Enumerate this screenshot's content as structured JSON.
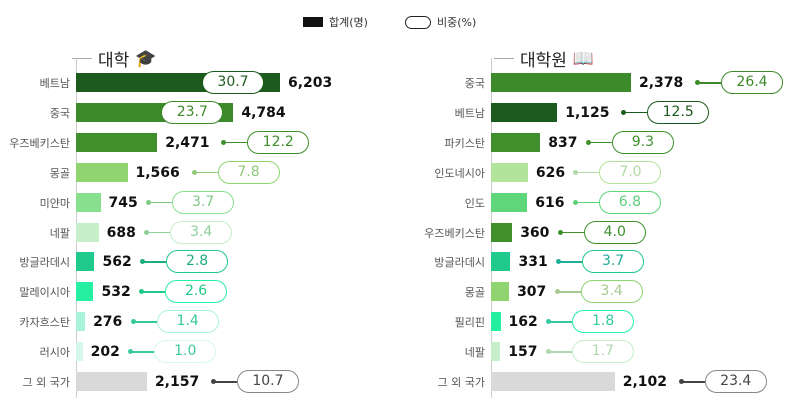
{
  "legend": {
    "total": "합계(명)",
    "share": "비중(%)"
  },
  "chart_data": [
    {
      "type": "bar",
      "title": "대학",
      "icon": "graduation-cap-icon",
      "categories": [
        "베트남",
        "중국",
        "우즈베키스탄",
        "몽골",
        "미얀마",
        "네팔",
        "방글라데시",
        "말레이시아",
        "카자흐스탄",
        "러시아",
        "그 외 국가"
      ],
      "values": [
        6203,
        4784,
        2471,
        1566,
        745,
        688,
        562,
        532,
        276,
        202,
        2157
      ],
      "labels": [
        "6,203",
        "4,784",
        "2,471",
        "1,566",
        "745",
        "688",
        "562",
        "532",
        "276",
        "202",
        "2,157"
      ],
      "share": [
        "30.7",
        "23.7",
        "12.2",
        "7.8",
        "3.7",
        "3.4",
        "2.8",
        "2.6",
        "1.4",
        "1.0",
        "10.7"
      ],
      "colors": [
        "#1d5a1d",
        "#3d8a2b",
        "#3f8f2c",
        "#8fd46f",
        "#88e08e",
        "#c6eec8",
        "#20c98c",
        "#25f0a2",
        "#a9f4d8",
        "#d6f8ea",
        "#d9d9d9"
      ],
      "pill_text_colors": [
        "#1d5a1d",
        "#3d8a2b",
        "#3f8f2c",
        "#8fc878",
        "#7fc987",
        "#8fcf98",
        "#1fae7a",
        "#1fc98a",
        "#35c99a",
        "#3cc9a0",
        "#444"
      ]
    },
    {
      "type": "bar",
      "title": "대학원",
      "icon": "book-search-icon",
      "categories": [
        "중국",
        "베트남",
        "파키스탄",
        "인도네시아",
        "인도",
        "우즈베키스탄",
        "방글라데시",
        "몽골",
        "필리핀",
        "네팔",
        "그 외 국가"
      ],
      "values": [
        2378,
        1125,
        837,
        626,
        616,
        360,
        331,
        307,
        162,
        157,
        2102
      ],
      "labels": [
        "2,378",
        "1,125",
        "837",
        "626",
        "616",
        "360",
        "331",
        "307",
        "162",
        "157",
        "2,102"
      ],
      "share": [
        "26.4",
        "12.5",
        "9.3",
        "7.0",
        "6.8",
        "4.0",
        "3.7",
        "3.4",
        "1.8",
        "1.7",
        "23.4"
      ],
      "colors": [
        "#3d8a2b",
        "#1d5a1d",
        "#3f8f2c",
        "#b2e59b",
        "#5fd67a",
        "#3f8f2c",
        "#20c98c",
        "#8fd46f",
        "#25f0a2",
        "#c6eec8",
        "#d9d9d9"
      ],
      "pill_text_colors": [
        "#3d8a2b",
        "#1d5a1d",
        "#3f8f2c",
        "#b2d9a5",
        "#5fcf7a",
        "#3f8f2c",
        "#1fae9a",
        "#a8c890",
        "#35c9a0",
        "#b0d6b0",
        "#444"
      ]
    }
  ]
}
